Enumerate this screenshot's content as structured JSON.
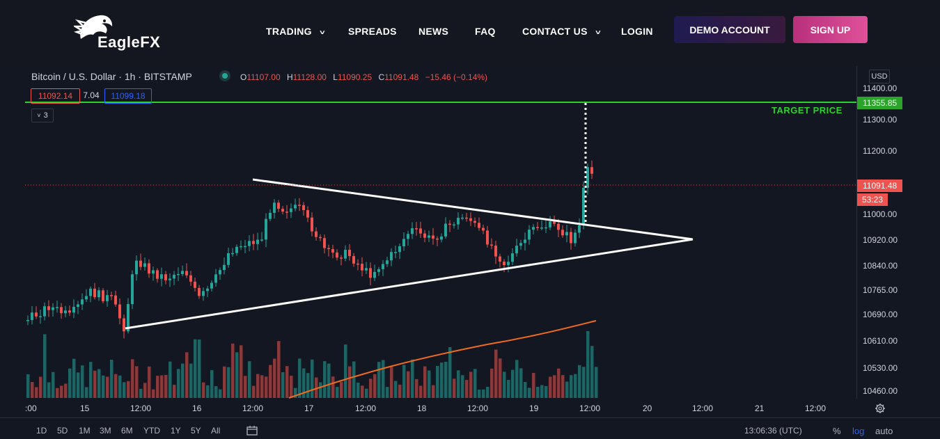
{
  "brand": {
    "name_part1": "Eagle",
    "name_part2": "FX"
  },
  "nav": {
    "trading": "TRADING",
    "spreads": "SPREADS",
    "news": "NEWS",
    "faq": "FAQ",
    "contact": "CONTACT US",
    "login": "LOGIN",
    "chevron": "˅"
  },
  "buttons": {
    "demo": "DEMO ACCOUNT",
    "signup": "SIGN UP"
  },
  "legend": {
    "symbol": "Bitcoin / U.S. Dollar · 1h · BITSTAMP",
    "o_label": "O",
    "o": "11107.00",
    "h_label": "H",
    "h": "11128.00",
    "l_label": "L",
    "l": "11090.25",
    "c_label": "C",
    "c": "11091.48",
    "change": "−15.46 (−0.14%)",
    "bid": "11092.14",
    "spread": "7.04",
    "ask": "11099.18",
    "collapse": "3"
  },
  "axis": {
    "currency": "USD",
    "ticks": [
      "11400.00",
      "11300.00",
      "11200.00",
      "11000.00",
      "10920.00",
      "10840.00",
      "10765.00",
      "10690.00",
      "10610.00",
      "10530.00",
      "10460.00"
    ],
    "target_value": "11355.85",
    "last_value": "11091.48",
    "countdown": "53:23",
    "x_ticks": [
      ":00",
      "15",
      "12:00",
      "16",
      "12:00",
      "17",
      "12:00",
      "18",
      "12:00",
      "19",
      "12:00",
      "20",
      "12:00",
      "21",
      "12:00"
    ]
  },
  "annotation": {
    "target": "TARGET PRICE"
  },
  "bottom": {
    "timeframes": [
      "1D",
      "5D",
      "1M",
      "3M",
      "6M",
      "YTD",
      "1Y",
      "5Y",
      "All"
    ],
    "clock": "13:06:36 (UTC)",
    "percent": "%",
    "log": "log",
    "auto": "auto"
  },
  "colors": {
    "up": "#26a69a",
    "down": "#ef5350",
    "target": "#2bd32b",
    "ma": "#f26b1d",
    "log_active": "#2962ff"
  }
}
